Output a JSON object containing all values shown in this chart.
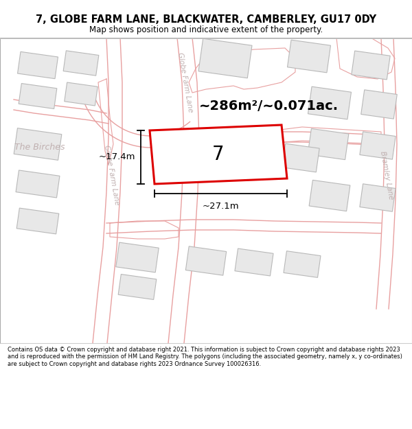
{
  "title": "7, GLOBE FARM LANE, BLACKWATER, CAMBERLEY, GU17 0DY",
  "subtitle": "Map shows position and indicative extent of the property.",
  "footer": "Contains OS data © Crown copyright and database right 2021. This information is subject to Crown copyright and database rights 2023 and is reproduced with the permission of HM Land Registry. The polygons (including the associated geometry, namely x, y co-ordinates) are subject to Crown copyright and database rights 2023 Ordnance Survey 100026316.",
  "map_bg": "#ffffff",
  "road_color": "#e8a0a0",
  "road_fill": "#ffffff",
  "building_fill": "#e8e8e8",
  "building_edge": "#b8b8b8",
  "plot_outline_fill": "#f5f0f0",
  "plot_outline_edge": "#e8a0a0",
  "highlight_fill": "#ffffff",
  "highlight_edge": "#dd0000",
  "road_label_color": "#c0b0b0",
  "dim_color": "#000000",
  "area_text": "~286m²/~0.071ac.",
  "label_7": "7",
  "dim_width": "~27.1m",
  "dim_height": "~17.4m",
  "street_gfl_upper": "Globe Farm Lane",
  "street_gfl_lower": "Globe Farm Lane",
  "street_bramley": "Bramley Lane",
  "street_birches": "The Birches"
}
